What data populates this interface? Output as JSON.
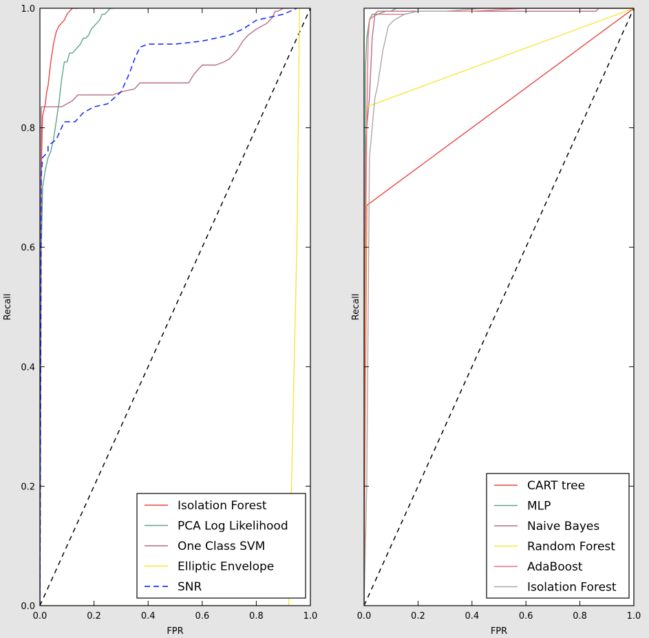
{
  "chart_data": [
    {
      "type": "line",
      "xlabel": "FPR",
      "ylabel": "Recall",
      "xlim": [
        0.0,
        1.0
      ],
      "ylim": [
        0.0,
        1.0
      ],
      "xticks": [
        "0.0",
        "0.2",
        "0.4",
        "0.6",
        "0.8",
        "1.0"
      ],
      "yticks": [
        "0.0",
        "0.2",
        "0.4",
        "0.6",
        "0.8",
        "1.0"
      ],
      "grid": false,
      "legend_position": "lower-right",
      "chance_line": {
        "x": [
          0,
          1
        ],
        "y": [
          0,
          1
        ],
        "color": "#000000",
        "dashed": true
      },
      "series": [
        {
          "name": "Isolation Forest",
          "color": "#e8433f",
          "dashed": false,
          "x": [
            0,
            0.003,
            0.005,
            0.008,
            0.01,
            0.02,
            0.025,
            0.03,
            0.035,
            0.04,
            0.05,
            0.06,
            0.07,
            0.08,
            0.09,
            0.1,
            0.11,
            0.12,
            0.13,
            0.14
          ],
          "y": [
            0,
            0.5,
            0.72,
            0.79,
            0.82,
            0.84,
            0.86,
            0.87,
            0.89,
            0.91,
            0.94,
            0.96,
            0.97,
            0.975,
            0.98,
            0.99,
            0.995,
            1.0,
            1.0,
            1.0
          ]
        },
        {
          "name": "PCA Log Likelihood",
          "color": "#5aa488",
          "dashed": false,
          "x": [
            0,
            0.005,
            0.01,
            0.02,
            0.03,
            0.04,
            0.05,
            0.06,
            0.07,
            0.08,
            0.09,
            0.1,
            0.11,
            0.12,
            0.13,
            0.14,
            0.15,
            0.16,
            0.17,
            0.18,
            0.19,
            0.2,
            0.21,
            0.22,
            0.23,
            0.24,
            0.25,
            0.26,
            0.27
          ],
          "y": [
            0,
            0.6,
            0.7,
            0.73,
            0.75,
            0.76,
            0.78,
            0.81,
            0.84,
            0.88,
            0.91,
            0.91,
            0.925,
            0.925,
            0.93,
            0.935,
            0.94,
            0.95,
            0.95,
            0.955,
            0.965,
            0.97,
            0.975,
            0.98,
            0.99,
            0.99,
            0.995,
            1.0,
            1.0
          ]
        },
        {
          "name": "One Class SVM",
          "color": "#b66b87",
          "dashed": false,
          "x": [
            0,
            0.003,
            0.005,
            0.02,
            0.05,
            0.08,
            0.12,
            0.14,
            0.2,
            0.27,
            0.3,
            0.35,
            0.37,
            0.5,
            0.55,
            0.57,
            0.6,
            0.65,
            0.68,
            0.7,
            0.73,
            0.75,
            0.77,
            0.8,
            0.82,
            0.84,
            0.86,
            0.87,
            0.88,
            0.9,
            0.92
          ],
          "y": [
            0,
            0.6,
            0.835,
            0.835,
            0.835,
            0.835,
            0.845,
            0.855,
            0.855,
            0.855,
            0.86,
            0.865,
            0.875,
            0.875,
            0.875,
            0.89,
            0.905,
            0.905,
            0.91,
            0.915,
            0.93,
            0.945,
            0.955,
            0.965,
            0.97,
            0.975,
            0.985,
            0.995,
            0.995,
            1.0,
            1.0
          ]
        },
        {
          "name": "Elliptic Envelope",
          "color": "#f7e53a",
          "dashed": false,
          "x": [
            0,
            0.92,
            0.95,
            0.96
          ],
          "y": [
            0,
            0,
            0.6,
            1.0
          ]
        },
        {
          "name": "SNR",
          "color": "#1b2ef7",
          "dashed": true,
          "x": [
            0,
            0.005,
            0.01,
            0.03,
            0.03,
            0.06,
            0.09,
            0.13,
            0.16,
            0.2,
            0.25,
            0.3,
            0.33,
            0.35,
            0.37,
            0.4,
            0.5,
            0.6,
            0.7,
            0.75,
            0.8,
            0.85,
            0.9,
            0.95
          ],
          "y": [
            0,
            0.72,
            0.75,
            0.76,
            0.77,
            0.78,
            0.81,
            0.81,
            0.825,
            0.835,
            0.84,
            0.86,
            0.89,
            0.915,
            0.935,
            0.94,
            0.94,
            0.945,
            0.955,
            0.965,
            0.98,
            0.985,
            0.99,
            1.0
          ]
        }
      ]
    },
    {
      "type": "line",
      "xlabel": "FPR",
      "ylabel": "Recall",
      "xlim": [
        0.0,
        1.0
      ],
      "ylim": [
        0.0,
        1.0
      ],
      "xticks": [
        "0.0",
        "0.2",
        "0.4",
        "0.6",
        "0.8",
        "1.0"
      ],
      "yticks": [
        "0.0",
        "0.2",
        "0.4",
        "0.6",
        "0.8",
        "1.0"
      ],
      "yticklabels_visible": false,
      "grid": false,
      "legend_position": "lower-right",
      "chance_line": {
        "x": [
          0,
          1
        ],
        "y": [
          0,
          1
        ],
        "color": "#000000",
        "dashed": true
      },
      "series": [
        {
          "name": "CART tree",
          "color": "#e8433f",
          "dashed": false,
          "x": [
            0,
            0.01,
            1.0
          ],
          "y": [
            0,
            0.67,
            1.0
          ]
        },
        {
          "name": "MLP",
          "color": "#5aa488",
          "dashed": false,
          "x": [
            0,
            0.005,
            0.01,
            0.02,
            0.03,
            0.05,
            0.08,
            0.1,
            0.12,
            0.2,
            1.0
          ],
          "y": [
            0,
            0.9,
            0.95,
            0.98,
            0.99,
            0.99,
            0.995,
            0.995,
            1.0,
            1.0,
            1.0
          ]
        },
        {
          "name": "Naive Bayes",
          "color": "#b66b87",
          "dashed": false,
          "x": [
            0,
            0.005,
            0.01,
            0.02,
            0.025,
            0.03,
            0.04,
            0.05,
            0.1,
            0.5,
            0.86,
            0.87,
            1.0
          ],
          "y": [
            0,
            0.75,
            0.8,
            0.85,
            0.9,
            0.95,
            0.99,
            0.995,
            0.995,
            0.995,
            0.995,
            1.0,
            1.0
          ]
        },
        {
          "name": "Random Forest",
          "color": "#f7e53a",
          "dashed": false,
          "x": [
            0,
            0.01,
            1.0
          ],
          "y": [
            0,
            0.835,
            1.0
          ]
        },
        {
          "name": "AdaBoost",
          "color": "#e8757d",
          "dashed": false,
          "x": [
            0,
            0.005,
            0.01,
            0.015,
            0.02,
            0.03,
            0.05,
            0.1,
            0.15,
            0.2,
            0.4,
            0.6,
            0.8,
            1.0
          ],
          "y": [
            0,
            0.6,
            0.8,
            0.95,
            0.98,
            0.985,
            0.99,
            0.99,
            0.99,
            0.995,
            0.995,
            1.0,
            1.0,
            1.0
          ]
        },
        {
          "name": "Isolation Forest",
          "color": "#a8a8a8",
          "dashed": false,
          "x": [
            0,
            0.01,
            0.02,
            0.04,
            0.05,
            0.06,
            0.07,
            0.08,
            0.09,
            0.1,
            0.11,
            0.13,
            0.15,
            0.2,
            0.3,
            0.44,
            1.0
          ],
          "y": [
            0,
            0.2,
            0.75,
            0.85,
            0.87,
            0.9,
            0.93,
            0.95,
            0.97,
            0.975,
            0.98,
            0.985,
            0.99,
            0.995,
            0.995,
            1.0,
            1.0
          ]
        }
      ]
    }
  ]
}
